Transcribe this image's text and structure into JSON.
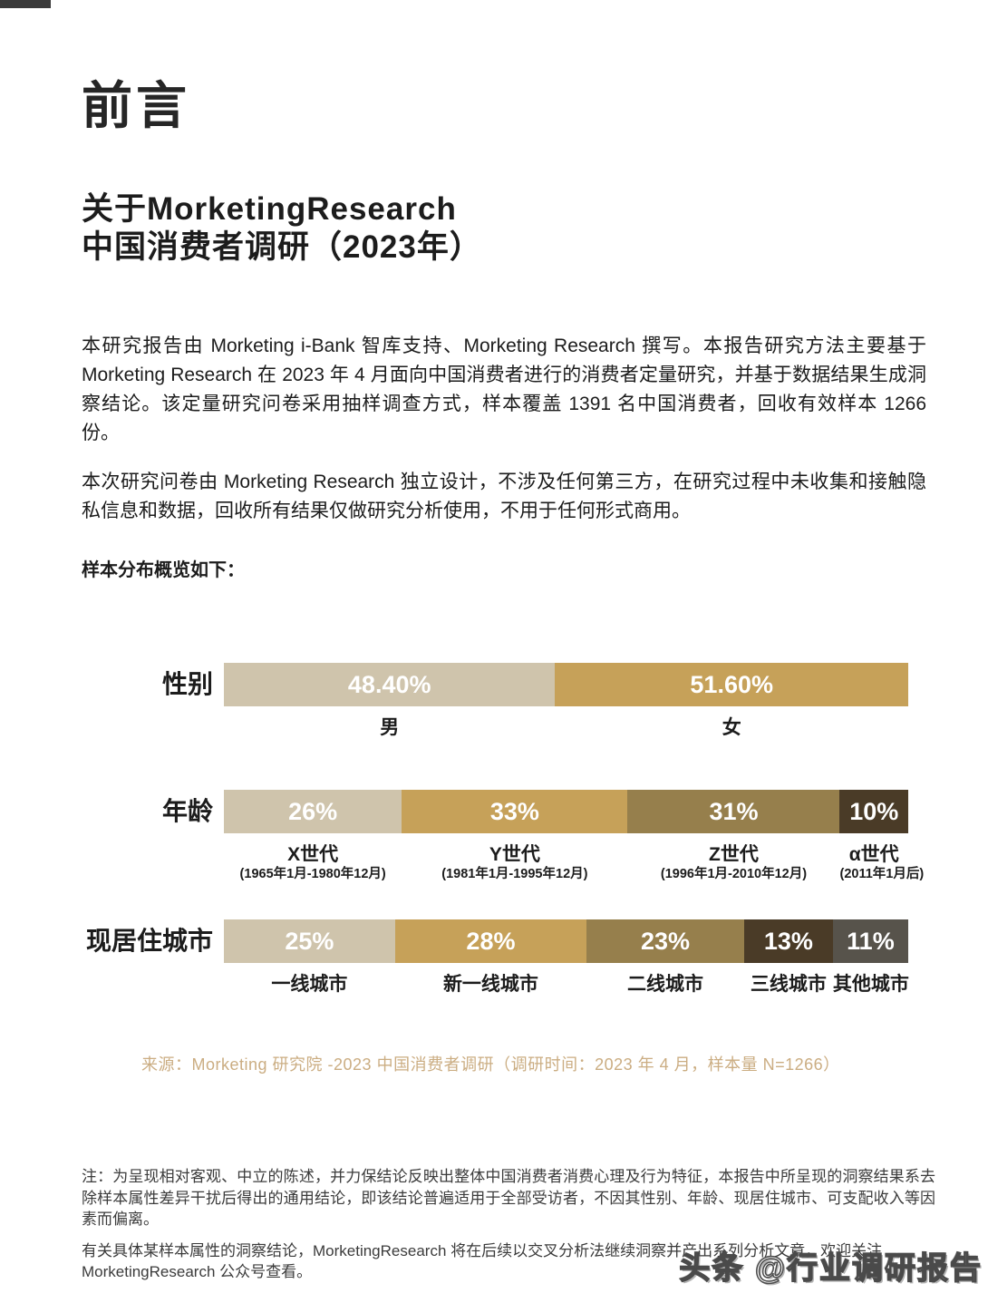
{
  "page": {
    "title": "前言",
    "subtitle_line1": "关于MorketingResearch",
    "subtitle_line2": "中国消费者调研（2023年）",
    "paragraphs": [
      "本研究报告由 Morketing i-Bank 智库支持、Morketing Research 撰写。本报告研究方法主要基于 Morketing Research 在 2023 年 4 月面向中国消费者进行的消费者定量研究，并基于数据结果生成洞察结论。该定量研究问卷采用抽样调查方式，样本覆盖 1391 名中国消费者，回收有效样本 1266 份。",
      "本次研究问卷由 Morketing Research 独立设计，不涉及任何第三方，在研究过程中未收集和接触隐私信息和数据，回收所有结果仅做研究分析使用，不用于任何形式商用。"
    ],
    "sample_overview_label": "样本分布概览如下：",
    "source_note": "来源：Morketing 研究院 -2023 中国消费者调研（调研时间：2023 年 4 月，样本量 N=1266）",
    "footnote": "注：为呈现相对客观、中立的陈述，并力保结论反映出整体中国消费者消费心理及行为特征，本报告中所呈现的洞察结果系去除样本属性差异干扰后得出的通用结论，即该结论普遍适用于全部受访者，不因其性别、年龄、现居住城市、可支配收入等因素而偏离。",
    "closing_note": "有关具体某样本属性的洞察结论，MorketingResearch 将在后续以交叉分析法继续洞察并产出系列分析文章，欢迎关注 MorketingResearch 公众号查看。",
    "watermark": "头条 @行业调研报告"
  },
  "colors": {
    "accent_gold": "#C6A05A",
    "source_gold": "#CBAD82",
    "bar_beige": "#CFC4AC",
    "bar_gold": "#C6A159",
    "bar_olive": "#967F4C",
    "bar_dark_brown": "#4A3B27",
    "bar_dark_gray": "#57534B",
    "text_black": "#1C1C1C",
    "note_gray": "#3B3B3B"
  },
  "chart_data": [
    {
      "type": "bar",
      "orientation": "horizontal-stacked",
      "row_label": "性别",
      "unit": "%",
      "segments": [
        {
          "value": 48.4,
          "display": "48.40%",
          "label": "男",
          "color": "#CFC4AC"
        },
        {
          "value": 51.6,
          "display": "51.60%",
          "label": "女",
          "color": "#C6A159"
        }
      ]
    },
    {
      "type": "bar",
      "orientation": "horizontal-stacked",
      "row_label": "年龄",
      "unit": "%",
      "segments": [
        {
          "value": 26,
          "display": "26%",
          "label": "X世代",
          "sublabel": "(1965年1月-1980年12月)",
          "color": "#CFC4AC"
        },
        {
          "value": 33,
          "display": "33%",
          "label": "Y世代",
          "sublabel": "(1981年1月-1995年12月)",
          "color": "#C6A159"
        },
        {
          "value": 31,
          "display": "31%",
          "label": "Z世代",
          "sublabel": "(1996年1月-2010年12月)",
          "color": "#967F4C"
        },
        {
          "value": 10,
          "display": "10%",
          "label": "α世代",
          "sublabel": "(2011年1月后)",
          "color": "#4A3B27"
        }
      ]
    },
    {
      "type": "bar",
      "orientation": "horizontal-stacked",
      "row_label": "现居住城市",
      "unit": "%",
      "segments": [
        {
          "value": 25,
          "display": "25%",
          "label": "一线城市",
          "color": "#CFC4AC"
        },
        {
          "value": 28,
          "display": "28%",
          "label": "新一线城市",
          "color": "#C6A159"
        },
        {
          "value": 23,
          "display": "23%",
          "label": "二线城市",
          "color": "#967F4C"
        },
        {
          "value": 13,
          "display": "13%",
          "label": "三线城市",
          "color": "#4A3B27"
        },
        {
          "value": 11,
          "display": "11%",
          "label": "其他城市",
          "color": "#57534B"
        }
      ]
    }
  ]
}
